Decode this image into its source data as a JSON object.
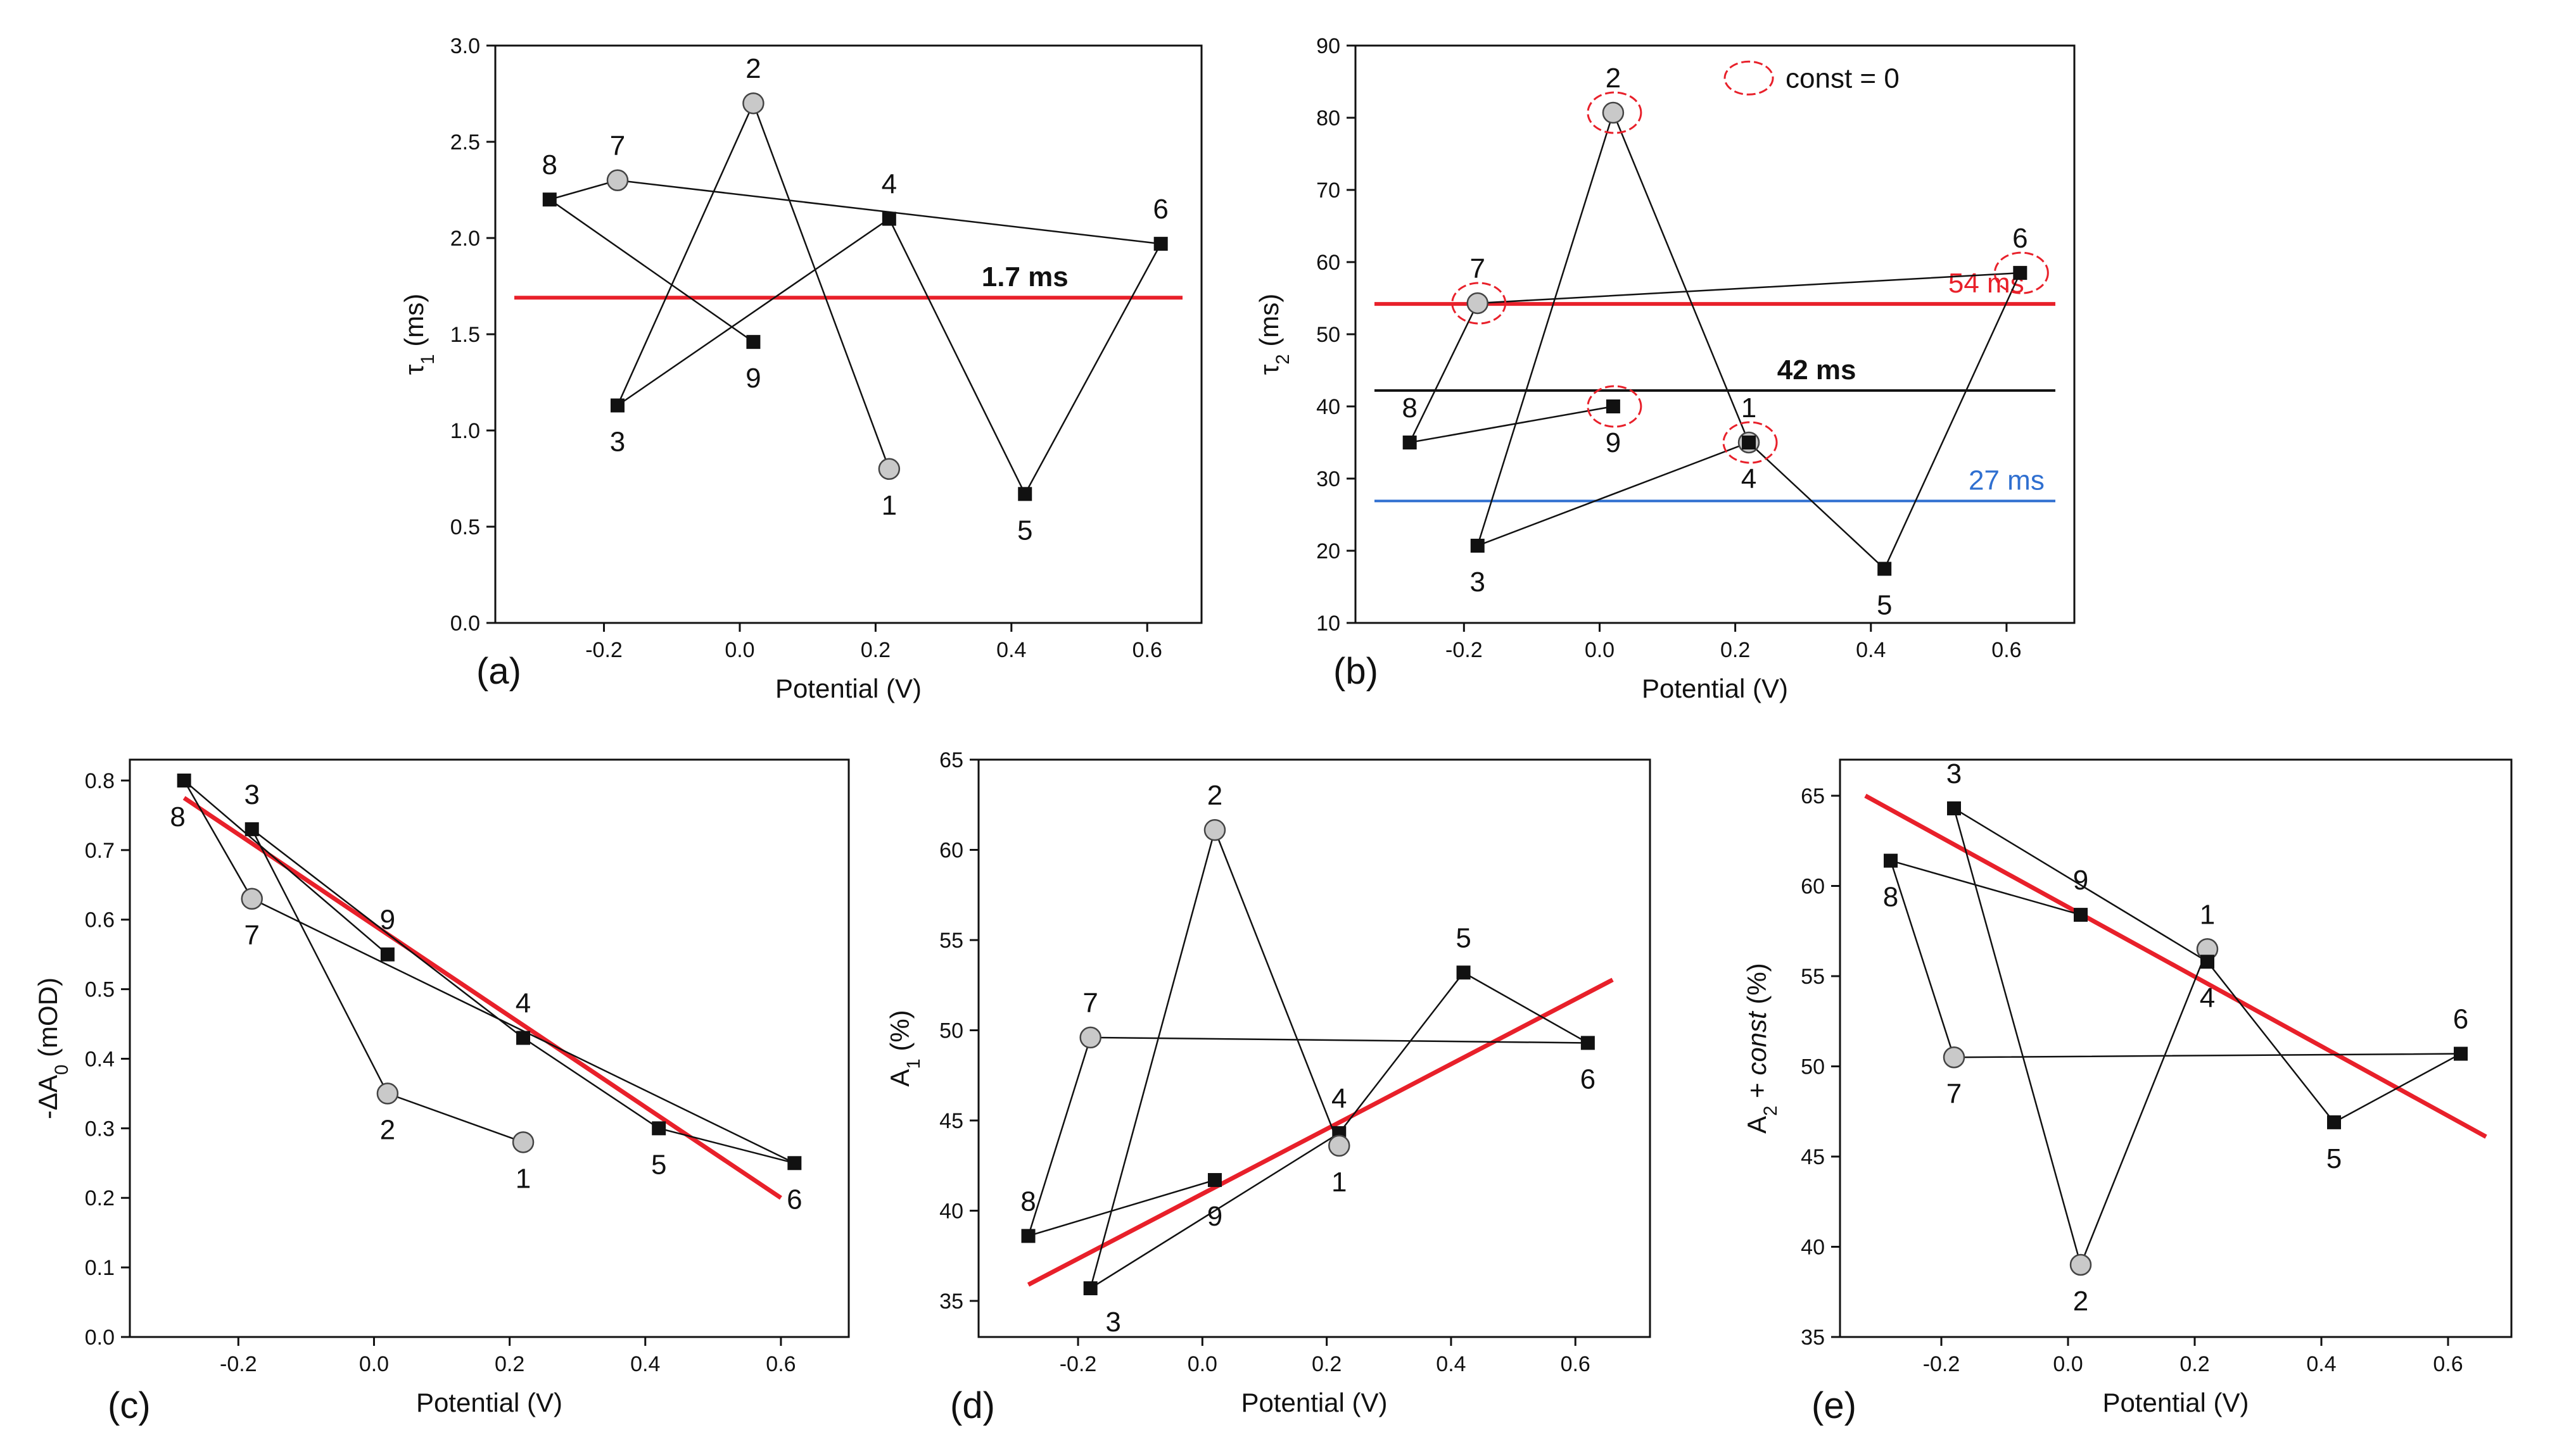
{
  "figure": {
    "panels": [
      {
        "id": "a",
        "panel_label": "(a)",
        "chart_data": {
          "type": "line",
          "xlabel": "Potential (V)",
          "ylabel": "τ₁ (ms)",
          "xlim": [
            -0.36,
            0.68
          ],
          "ylim": [
            0.0,
            3.0
          ],
          "xticks": [
            -0.2,
            0.0,
            0.2,
            0.4,
            0.6
          ],
          "xtick_labels": [
            "-0.2",
            "0.0",
            "0.2",
            "0.4",
            "0.6"
          ],
          "yticks": [
            0.0,
            0.5,
            1.0,
            1.5,
            2.0,
            2.5,
            3.0
          ],
          "ytick_labels": [
            "0.0",
            "0.5",
            "1.0",
            "1.5",
            "2.0",
            "2.5",
            "3.0"
          ],
          "points": [
            {
              "label": "8",
              "x": -0.28,
              "y": 2.2,
              "marker": "square",
              "label_pos": "above"
            },
            {
              "label": "3",
              "x": -0.18,
              "y": 1.13,
              "marker": "square",
              "label_pos": "below"
            },
            {
              "label": "7",
              "x": -0.18,
              "y": 2.3,
              "marker": "circle",
              "label_pos": "above"
            },
            {
              "label": "2",
              "x": 0.02,
              "y": 2.7,
              "marker": "circle",
              "label_pos": "above"
            },
            {
              "label": "9",
              "x": 0.02,
              "y": 1.46,
              "marker": "square",
              "label_pos": "below"
            },
            {
              "label": "4",
              "x": 0.22,
              "y": 2.1,
              "marker": "square",
              "label_pos": "above"
            },
            {
              "label": "1",
              "x": 0.22,
              "y": 0.8,
              "marker": "circle",
              "label_pos": "below"
            },
            {
              "label": "5",
              "x": 0.42,
              "y": 0.67,
              "marker": "square",
              "label_pos": "below"
            },
            {
              "label": "6",
              "x": 0.62,
              "y": 1.97,
              "marker": "square",
              "label_pos": "above"
            }
          ],
          "hlines": [
            {
              "y": 1.69,
              "color": "#e8202a",
              "label": "1.7 ms",
              "label_x": 0.42,
              "label_color": "#111111",
              "bold": true
            }
          ]
        }
      },
      {
        "id": "b",
        "panel_label": "(b)",
        "chart_data": {
          "type": "line",
          "xlabel": "Potential (V)",
          "ylabel": "τ₂ (ms)",
          "xlim": [
            -0.36,
            0.7
          ],
          "ylim": [
            10,
            90
          ],
          "xticks": [
            -0.2,
            0.0,
            0.2,
            0.4,
            0.6
          ],
          "xtick_labels": [
            "-0.2",
            "0.0",
            "0.2",
            "0.4",
            "0.6"
          ],
          "yticks": [
            10,
            20,
            30,
            40,
            50,
            60,
            70,
            80,
            90
          ],
          "ytick_labels": [
            "10",
            "20",
            "30",
            "40",
            "50",
            "60",
            "70",
            "80",
            "90"
          ],
          "points": [
            {
              "label": "8",
              "x": -0.28,
              "y": 35,
              "marker": "square",
              "label_pos": "above",
              "ring": false
            },
            {
              "label": "3",
              "x": -0.18,
              "y": 20.7,
              "marker": "square",
              "label_pos": "below",
              "ring": false
            },
            {
              "label": "7",
              "x": -0.18,
              "y": 54.3,
              "marker": "circle",
              "label_pos": "above",
              "ring": true
            },
            {
              "label": "2",
              "x": 0.02,
              "y": 80.7,
              "marker": "circle",
              "label_pos": "above",
              "ring": true
            },
            {
              "label": "9",
              "x": 0.02,
              "y": 40,
              "marker": "square",
              "label_pos": "below",
              "ring": true
            },
            {
              "label": "1",
              "x": 0.22,
              "y": 35,
              "marker": "circle",
              "label_pos": "above",
              "ring": true
            },
            {
              "label": "4",
              "x": 0.22,
              "y": 35,
              "marker": "square",
              "label_pos": "below",
              "ring": false
            },
            {
              "label": "5",
              "x": 0.42,
              "y": 17.5,
              "marker": "square",
              "label_pos": "below",
              "ring": false
            },
            {
              "label": "6",
              "x": 0.62,
              "y": 58.5,
              "marker": "square",
              "label_pos": "above",
              "ring": true
            }
          ],
          "hlines": [
            {
              "y": 54.2,
              "color": "#e8202a",
              "label": "54 ms",
              "label_x": 0.57,
              "label_color": "#e8202a",
              "bold": false
            },
            {
              "y": 42.2,
              "color": "#111111",
              "label": "42 ms",
              "label_x": 0.32,
              "label_color": "#111111",
              "bold": true
            },
            {
              "y": 26.9,
              "color": "#2f6fd0",
              "label": "27 ms",
              "label_x": 0.6,
              "label_color": "#2f6fd0",
              "bold": false
            }
          ],
          "legend": {
            "label": "const = 0",
            "ring_color": "#e8202a"
          }
        }
      },
      {
        "id": "c",
        "panel_label": "(c)",
        "chart_data": {
          "type": "line",
          "xlabel": "Potential (V)",
          "ylabel": "-ΔA₀ (mOD)",
          "xlim": [
            -0.36,
            0.7
          ],
          "ylim": [
            0.0,
            0.83
          ],
          "xticks": [
            -0.2,
            0.0,
            0.2,
            0.4,
            0.6
          ],
          "xtick_labels": [
            "-0.2",
            "0.0",
            "0.2",
            "0.4",
            "0.6"
          ],
          "yticks": [
            0.0,
            0.1,
            0.2,
            0.3,
            0.4,
            0.5,
            0.6,
            0.7,
            0.8
          ],
          "ytick_labels": [
            "0.0",
            "0.1",
            "0.2",
            "0.3",
            "0.4",
            "0.5",
            "0.6",
            "0.7",
            "0.8"
          ],
          "points": [
            {
              "label": "8",
              "x": -0.28,
              "y": 0.8,
              "marker": "square",
              "label_pos": "below-left"
            },
            {
              "label": "3",
              "x": -0.18,
              "y": 0.73,
              "marker": "square",
              "label_pos": "above"
            },
            {
              "label": "7",
              "x": -0.18,
              "y": 0.63,
              "marker": "circle",
              "label_pos": "below"
            },
            {
              "label": "2",
              "x": 0.02,
              "y": 0.35,
              "marker": "circle",
              "label_pos": "below"
            },
            {
              "label": "9",
              "x": 0.02,
              "y": 0.55,
              "marker": "square",
              "label_pos": "above"
            },
            {
              "label": "4",
              "x": 0.22,
              "y": 0.43,
              "marker": "square",
              "label_pos": "above"
            },
            {
              "label": "1",
              "x": 0.22,
              "y": 0.28,
              "marker": "circle",
              "label_pos": "below"
            },
            {
              "label": "5",
              "x": 0.42,
              "y": 0.3,
              "marker": "square",
              "label_pos": "below"
            },
            {
              "label": "6",
              "x": 0.62,
              "y": 0.25,
              "marker": "square",
              "label_pos": "below"
            }
          ],
          "fit_line": {
            "x": [
              -0.28,
              0.6
            ],
            "y": [
              0.775,
              0.2
            ],
            "color": "#e8202a"
          }
        }
      },
      {
        "id": "d",
        "panel_label": "(d)",
        "chart_data": {
          "type": "line",
          "xlabel": "Potential (V)",
          "ylabel": "A₁ (%)",
          "xlim": [
            -0.36,
            0.72
          ],
          "ylim": [
            33,
            65
          ],
          "xticks": [
            -0.2,
            0.0,
            0.2,
            0.4,
            0.6
          ],
          "xtick_labels": [
            "-0.2",
            "0.0",
            "0.2",
            "0.4",
            "0.6"
          ],
          "yticks": [
            35,
            40,
            45,
            50,
            55,
            60,
            65
          ],
          "ytick_labels": [
            "35",
            "40",
            "45",
            "50",
            "55",
            "60",
            "65"
          ],
          "points": [
            {
              "label": "8",
              "x": -0.28,
              "y": 38.6,
              "marker": "square",
              "label_pos": "above"
            },
            {
              "label": "3",
              "x": -0.18,
              "y": 35.7,
              "marker": "square",
              "label_pos": "below-right"
            },
            {
              "label": "7",
              "x": -0.18,
              "y": 49.6,
              "marker": "circle",
              "label_pos": "above"
            },
            {
              "label": "2",
              "x": 0.02,
              "y": 61.1,
              "marker": "circle",
              "label_pos": "above"
            },
            {
              "label": "9",
              "x": 0.02,
              "y": 41.7,
              "marker": "square",
              "label_pos": "below"
            },
            {
              "label": "4",
              "x": 0.22,
              "y": 44.3,
              "marker": "square",
              "label_pos": "above"
            },
            {
              "label": "1",
              "x": 0.22,
              "y": 43.6,
              "marker": "circle",
              "label_pos": "below"
            },
            {
              "label": "5",
              "x": 0.42,
              "y": 53.2,
              "marker": "square",
              "label_pos": "above"
            },
            {
              "label": "6",
              "x": 0.62,
              "y": 49.3,
              "marker": "square",
              "label_pos": "below"
            }
          ],
          "fit_line": {
            "x": [
              -0.28,
              0.66
            ],
            "y": [
              35.9,
              52.8
            ],
            "color": "#e8202a"
          }
        }
      },
      {
        "id": "e",
        "panel_label": "(e)",
        "chart_data": {
          "type": "line",
          "xlabel": "Potential (V)",
          "ylabel": "A₂ + const (%)",
          "xlim": [
            -0.36,
            0.7
          ],
          "ylim": [
            35,
            67
          ],
          "xticks": [
            -0.2,
            0.0,
            0.2,
            0.4,
            0.6
          ],
          "xtick_labels": [
            "-0.2",
            "0.0",
            "0.2",
            "0.4",
            "0.6"
          ],
          "yticks": [
            35,
            40,
            45,
            50,
            55,
            60,
            65
          ],
          "ytick_labels": [
            "35",
            "40",
            "45",
            "50",
            "55",
            "60",
            "65"
          ],
          "points": [
            {
              "label": "8",
              "x": -0.28,
              "y": 61.4,
              "marker": "square",
              "label_pos": "below"
            },
            {
              "label": "3",
              "x": -0.18,
              "y": 64.3,
              "marker": "square",
              "label_pos": "above"
            },
            {
              "label": "7",
              "x": -0.18,
              "y": 50.5,
              "marker": "circle",
              "label_pos": "below"
            },
            {
              "label": "2",
              "x": 0.02,
              "y": 39,
              "marker": "circle",
              "label_pos": "below"
            },
            {
              "label": "9",
              "x": 0.02,
              "y": 58.4,
              "marker": "square",
              "label_pos": "above"
            },
            {
              "label": "1",
              "x": 0.22,
              "y": 56.5,
              "marker": "circle",
              "label_pos": "above"
            },
            {
              "label": "4",
              "x": 0.22,
              "y": 55.8,
              "marker": "square",
              "label_pos": "below"
            },
            {
              "label": "5",
              "x": 0.42,
              "y": 46.9,
              "marker": "square",
              "label_pos": "below"
            },
            {
              "label": "6",
              "x": 0.62,
              "y": 50.7,
              "marker": "square",
              "label_pos": "above"
            }
          ],
          "fit_line": {
            "x": [
              -0.32,
              0.66
            ],
            "y": [
              65,
              46.1
            ],
            "color": "#e8202a"
          }
        }
      }
    ]
  }
}
